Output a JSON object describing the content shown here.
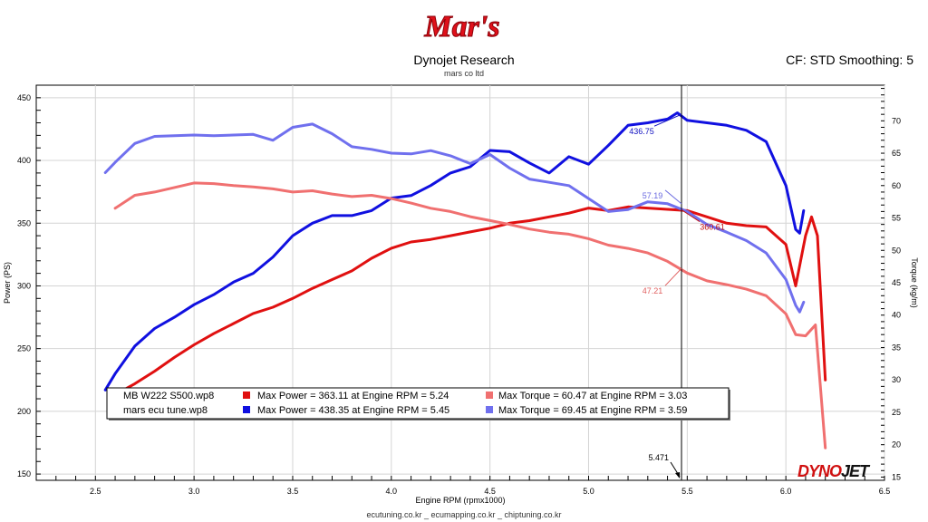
{
  "header": {
    "title": "Dynojet Research",
    "subtitle": "mars co ltd",
    "right_text": "CF: STD Smoothing: 5",
    "logo_text": "Mar's"
  },
  "footer": {
    "text": "ecutuning.co.kr _ ecumapping.co.kr _ chiptuning.co.kr"
  },
  "brand": {
    "dynojet_a": "DYNO",
    "dynojet_b": "JET"
  },
  "chart_data": {
    "type": "line",
    "xlabel": "Engine RPM (rpmx1000)",
    "ylabel": "Power (PS)",
    "y2label": "Torque (kg/m)",
    "xlim": [
      2.2,
      6.5
    ],
    "ylim": [
      145,
      460
    ],
    "y2lim": [
      14.5,
      75.5
    ],
    "xticks": [
      2.5,
      3.0,
      3.5,
      4.0,
      4.5,
      5.0,
      5.5,
      6.0,
      6.5
    ],
    "yticks": [
      150,
      200,
      250,
      300,
      350,
      400,
      450
    ],
    "y2ticks": [
      15,
      20,
      25,
      30,
      35,
      40,
      45,
      50,
      55,
      60,
      65,
      70
    ],
    "cursor": {
      "x": 5.471,
      "label": "5.471"
    },
    "point_labels": [
      {
        "series": "mars_power",
        "value": "436.75"
      },
      {
        "series": "mars_torque",
        "value": "57.19"
      },
      {
        "series": "stock_power",
        "value": "360.61"
      },
      {
        "series": "stock_torque",
        "value": "47.21"
      }
    ],
    "legend": {
      "rows": [
        {
          "file": "MB W222 S500.wp8",
          "power_text": "Max Power = 363.11 at Engine RPM = 5.24",
          "torque_text": "Max Torque = 60.47 at Engine RPM = 3.03"
        },
        {
          "file": "mars ecu tune.wp8",
          "power_text": "Max Power = 438.35 at Engine RPM = 5.45",
          "torque_text": "Max Torque = 69.45 at Engine RPM = 3.59"
        }
      ]
    },
    "series": [
      {
        "id": "stock_power",
        "color": "#e01010",
        "axis": "left",
        "x": [
          2.62,
          2.7,
          2.8,
          2.9,
          3.0,
          3.1,
          3.2,
          3.3,
          3.4,
          3.5,
          3.6,
          3.7,
          3.8,
          3.9,
          4.0,
          4.1,
          4.2,
          4.3,
          4.4,
          4.5,
          4.6,
          4.7,
          4.8,
          4.9,
          5.0,
          5.1,
          5.2,
          5.3,
          5.4,
          5.5,
          5.6,
          5.7,
          5.8,
          5.9,
          6.0,
          6.05,
          6.1,
          6.13,
          6.16,
          6.2
        ],
        "y": [
          215,
          222,
          232,
          243,
          253,
          262,
          270,
          278,
          283,
          290,
          298,
          305,
          312,
          322,
          330,
          335,
          337,
          340,
          343,
          346,
          350,
          352,
          355,
          358,
          362,
          360,
          363,
          362,
          361,
          360,
          355,
          350,
          348,
          347,
          333,
          300,
          340,
          355,
          340,
          225
        ]
      },
      {
        "id": "mars_power",
        "color": "#1010e0",
        "axis": "left",
        "x": [
          2.55,
          2.6,
          2.7,
          2.8,
          2.9,
          3.0,
          3.1,
          3.2,
          3.3,
          3.4,
          3.5,
          3.6,
          3.7,
          3.8,
          3.9,
          4.0,
          4.1,
          4.2,
          4.3,
          4.4,
          4.5,
          4.6,
          4.7,
          4.8,
          4.9,
          5.0,
          5.1,
          5.2,
          5.3,
          5.4,
          5.45,
          5.5,
          5.6,
          5.7,
          5.8,
          5.9,
          6.0,
          6.05,
          6.07,
          6.09
        ],
        "y": [
          217,
          230,
          252,
          266,
          275,
          285,
          293,
          303,
          310,
          323,
          340,
          350,
          356,
          356,
          360,
          370,
          372,
          380,
          390,
          395,
          408,
          407,
          398,
          390,
          403,
          397,
          412,
          428,
          430,
          433,
          438,
          432,
          430,
          428,
          424,
          415,
          380,
          345,
          342,
          360
        ]
      },
      {
        "id": "stock_torque",
        "color": "#f07070",
        "axis": "right",
        "x": [
          2.6,
          2.7,
          2.8,
          2.9,
          3.0,
          3.1,
          3.2,
          3.3,
          3.4,
          3.5,
          3.6,
          3.7,
          3.8,
          3.9,
          4.0,
          4.1,
          4.2,
          4.3,
          4.4,
          4.5,
          4.6,
          4.7,
          4.8,
          4.9,
          5.0,
          5.1,
          5.2,
          5.3,
          5.4,
          5.5,
          5.6,
          5.7,
          5.8,
          5.9,
          6.0,
          6.05,
          6.1,
          6.15,
          6.2
        ],
        "y": [
          56.5,
          58.5,
          59.0,
          59.7,
          60.4,
          60.3,
          60.0,
          59.8,
          59.5,
          59.0,
          59.2,
          58.7,
          58.3,
          58.5,
          58.0,
          57.3,
          56.5,
          56.0,
          55.2,
          54.6,
          54.0,
          53.3,
          52.8,
          52.5,
          51.8,
          50.8,
          50.3,
          49.6,
          48.3,
          46.5,
          45.3,
          44.7,
          44.0,
          43.0,
          40.2,
          37.0,
          36.8,
          38.5,
          19.5
        ]
      },
      {
        "id": "mars_torque",
        "color": "#7070ee",
        "axis": "right",
        "x": [
          2.55,
          2.6,
          2.7,
          2.8,
          2.9,
          3.0,
          3.1,
          3.2,
          3.3,
          3.4,
          3.5,
          3.6,
          3.7,
          3.8,
          3.9,
          4.0,
          4.1,
          4.2,
          4.3,
          4.4,
          4.5,
          4.6,
          4.7,
          4.8,
          4.9,
          5.0,
          5.1,
          5.2,
          5.3,
          5.4,
          5.5,
          5.6,
          5.7,
          5.8,
          5.9,
          6.0,
          6.05,
          6.07,
          6.09
        ],
        "y": [
          62.0,
          63.6,
          66.5,
          67.6,
          67.7,
          67.8,
          67.7,
          67.8,
          67.9,
          67.0,
          69.0,
          69.5,
          68.0,
          66.0,
          65.6,
          65.0,
          64.9,
          65.4,
          64.6,
          63.4,
          64.8,
          62.7,
          61.0,
          60.5,
          60.0,
          58.0,
          56.0,
          56.3,
          57.5,
          57.2,
          56.0,
          54.0,
          52.8,
          51.5,
          49.6,
          45.5,
          41.5,
          40.5,
          42.0
        ]
      }
    ]
  }
}
